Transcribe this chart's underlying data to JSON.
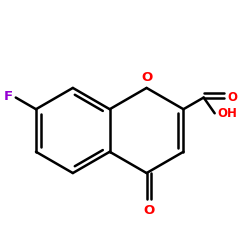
{
  "background_color": "#ffffff",
  "bond_color": "#000000",
  "oxygen_color": "#ff0000",
  "fluorine_color": "#9400d3",
  "bond_width": 1.8,
  "figsize": [
    2.5,
    2.5
  ],
  "dpi": 100,
  "xlim": [
    0.05,
    0.95
  ],
  "ylim": [
    0.08,
    0.92
  ]
}
